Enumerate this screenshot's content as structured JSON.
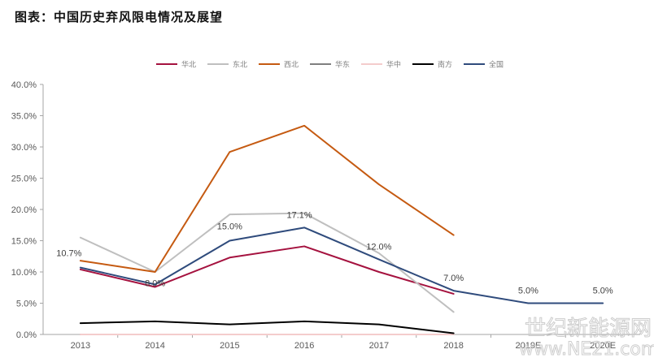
{
  "header": {
    "title": "图表：中国历史弃风限电情况及展望"
  },
  "watermark": {
    "line1": "世纪新能源网",
    "line2": "www.NE21.com"
  },
  "chart_data": {
    "type": "line",
    "title": "图表：中国历史弃风限电情况及展望",
    "xlabel": "",
    "ylabel": "",
    "categories": [
      "2013",
      "2014",
      "2015",
      "2016",
      "2017",
      "2018",
      "2019E",
      "2020E"
    ],
    "ylim": [
      0,
      40
    ],
    "yticks": [
      0,
      5,
      10,
      15,
      20,
      25,
      30,
      35,
      40
    ],
    "ytick_labels": [
      "0.0%",
      "5.0%",
      "10.0%",
      "15.0%",
      "20.0%",
      "25.0%",
      "30.0%",
      "35.0%",
      "40.0%"
    ],
    "grid": false,
    "legend": "top",
    "series": [
      {
        "name": "华北",
        "color": "#a5123f",
        "values": [
          10.4,
          7.6,
          12.3,
          14.1,
          10.0,
          6.5,
          null,
          null
        ]
      },
      {
        "name": "东北",
        "color": "#bfbfbf",
        "values": [
          15.5,
          10.0,
          19.2,
          19.4,
          13.0,
          3.6,
          null,
          null
        ]
      },
      {
        "name": "西北",
        "color": "#c55a11",
        "values": [
          11.8,
          10.0,
          29.2,
          33.4,
          24.0,
          15.9,
          null,
          null
        ]
      },
      {
        "name": "华东",
        "color": "#7f7f7f",
        "values": [
          0,
          0,
          0,
          0,
          0,
          0,
          null,
          null
        ]
      },
      {
        "name": "华中",
        "color": "#f4cccc",
        "values": [
          0,
          0,
          0,
          0,
          0,
          0,
          null,
          null
        ]
      },
      {
        "name": "南方",
        "color": "#000000",
        "values": [
          1.8,
          2.1,
          1.6,
          2.1,
          1.6,
          0.2,
          null,
          null
        ]
      },
      {
        "name": "全国",
        "color": "#2f4b7c",
        "values": [
          10.7,
          8.0,
          15.0,
          17.1,
          12.0,
          7.0,
          5.0,
          5.0
        ]
      }
    ],
    "data_labels": {
      "series": "全国",
      "labels": [
        "10.7%",
        "8.0%",
        "15.0%",
        "17.1%",
        "12.0%",
        "7.0%",
        "5.0%",
        "5.0%"
      ]
    }
  }
}
